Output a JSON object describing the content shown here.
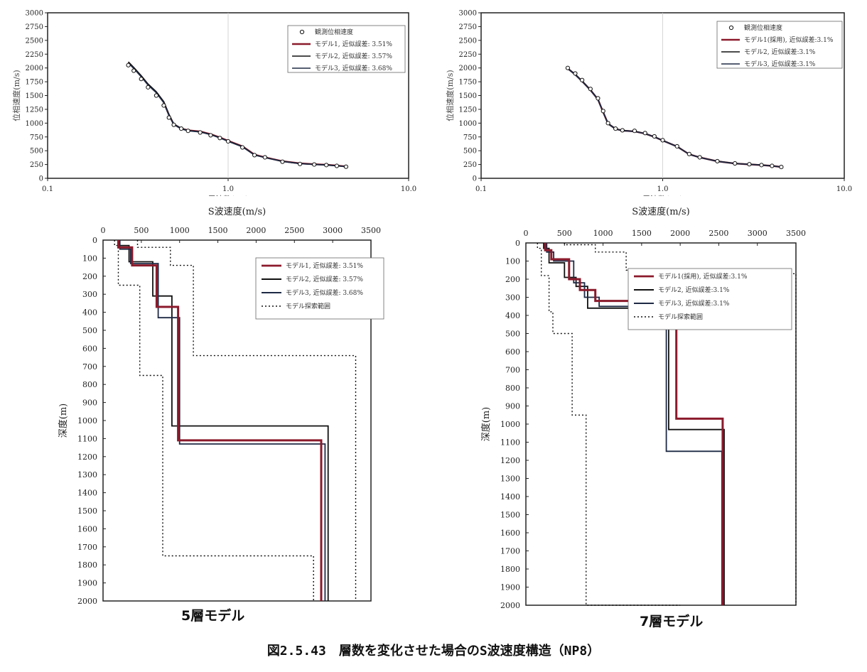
{
  "colors": {
    "model1": "#8b1a2b",
    "model2": "#111111",
    "model3": "#1e2a44",
    "range": "#111111",
    "observed": "#111111"
  },
  "charts": {
    "dispersion_left": {
      "ylabel": "位相速度(m/s)",
      "xlabel": "周波数(Hz)",
      "legend": [
        "観測位相速度",
        "モデル1, 近似誤差: 3.51%",
        "モデル2, 近似誤差: 3.57%",
        "モデル3, 近似誤差: 3.68%"
      ]
    },
    "dispersion_right": {
      "ylabel": "位相速度(m/s)",
      "xlabel": "周波数(Hz)",
      "legend": [
        "観測位相速度",
        "モデル1(採用), 近似誤差:3.1%",
        "モデル2, 近似誤差:3.1%",
        "モデル3, 近似誤差:3.1%"
      ]
    },
    "profile_left": {
      "xlabel": "S波速度(m/s)",
      "ylabel": "深度(m)",
      "legend": [
        "モデル1, 近似誤差: 3.51%",
        "モデル2, 近似誤差: 3.57%",
        "モデル3, 近似誤差: 3.68%",
        "モデル探索範囲"
      ],
      "caption": "5層モデル"
    },
    "profile_right": {
      "xlabel": "S波速度(m/s)",
      "ylabel": "深度(m)",
      "legend": [
        "モデル1(採用), 近似誤差:3.1%",
        "モデル2, 近似誤差:3.1%",
        "モデル3, 近似誤差:3.1%",
        "モデル探索範囲"
      ],
      "caption": "7層モデル"
    }
  },
  "figure_caption": "図2.5.43　層数を変化させた場合のS波速度構造（NP8）",
  "chart_data": [
    {
      "type": "line",
      "xscale": "log",
      "xlim": [
        0.1,
        10.0
      ],
      "xticks": [
        "0.1",
        "1.0",
        "10.0"
      ],
      "ylim": [
        0,
        3000
      ],
      "yticks": [
        0,
        250,
        500,
        750,
        1000,
        1250,
        1500,
        1750,
        2000,
        2250,
        2500,
        2750,
        3000
      ],
      "xlabel": "周波数(Hz)",
      "ylabel": "位相速度(m/s)",
      "legend_position": "top-right",
      "observed": {
        "name": "観測位相速度",
        "x": [
          0.28,
          0.3,
          0.33,
          0.36,
          0.4,
          0.44,
          0.47,
          0.5,
          0.55,
          0.6,
          0.7,
          0.8,
          0.9,
          1.0,
          1.2,
          1.4,
          1.6,
          2.0,
          2.5,
          3.0,
          3.5,
          4.0,
          4.5
        ],
        "y": [
          2050,
          1950,
          1800,
          1650,
          1500,
          1320,
          1100,
          970,
          900,
          860,
          830,
          780,
          730,
          670,
          560,
          420,
          380,
          300,
          260,
          250,
          240,
          225,
          210
        ]
      },
      "series": [
        {
          "name": "モデル1, 近似誤差: 3.51%",
          "x": [
            0.28,
            0.3,
            0.33,
            0.36,
            0.4,
            0.44,
            0.47,
            0.5,
            0.55,
            0.6,
            0.7,
            0.8,
            0.9,
            1.0,
            1.2,
            1.4,
            1.6,
            2.0,
            2.5,
            3.0,
            3.5,
            4.0,
            4.5
          ],
          "y": [
            2100,
            2000,
            1850,
            1700,
            1560,
            1380,
            1150,
            980,
            900,
            870,
            850,
            800,
            740,
            680,
            580,
            430,
            380,
            310,
            270,
            255,
            245,
            230,
            215
          ]
        },
        {
          "name": "モデル2, 近似誤差: 3.57%",
          "x": [
            0.28,
            0.3,
            0.33,
            0.36,
            0.4,
            0.44,
            0.47,
            0.5,
            0.55,
            0.6,
            0.7,
            0.8,
            0.9,
            1.0,
            1.2,
            1.4,
            1.6,
            2.0,
            2.5,
            3.0,
            3.5,
            4.0,
            4.5
          ],
          "y": [
            2110,
            2010,
            1860,
            1710,
            1570,
            1390,
            1160,
            985,
            905,
            865,
            845,
            795,
            735,
            675,
            575,
            425,
            378,
            308,
            268,
            253,
            243,
            228,
            213
          ]
        },
        {
          "name": "モデル3, 近似誤差: 3.68%",
          "x": [
            0.28,
            0.3,
            0.33,
            0.36,
            0.4,
            0.44,
            0.47,
            0.5,
            0.55,
            0.6,
            0.7,
            0.8,
            0.9,
            1.0,
            1.2,
            1.4,
            1.6,
            2.0,
            2.5,
            3.0,
            3.5,
            4.0,
            4.5
          ],
          "y": [
            2090,
            1990,
            1840,
            1690,
            1550,
            1370,
            1140,
            975,
            895,
            860,
            840,
            790,
            730,
            670,
            570,
            420,
            375,
            305,
            265,
            250,
            240,
            225,
            210
          ]
        }
      ]
    },
    {
      "type": "line",
      "xscale": "log",
      "xlim": [
        0.1,
        10.0
      ],
      "xticks": [
        "0.1",
        "1.0",
        "10.0"
      ],
      "ylim": [
        0,
        3000
      ],
      "yticks": [
        0,
        250,
        500,
        750,
        1000,
        1250,
        1500,
        1750,
        2000,
        2250,
        2500,
        2750,
        3000
      ],
      "xlabel": "周波数(Hz)",
      "ylabel": "位相速度(m/s)",
      "legend_position": "top-right",
      "observed": {
        "name": "観測位相速度",
        "x": [
          0.3,
          0.33,
          0.36,
          0.4,
          0.44,
          0.47,
          0.5,
          0.55,
          0.6,
          0.7,
          0.8,
          0.9,
          1.0,
          1.2,
          1.4,
          1.6,
          2.0,
          2.5,
          3.0,
          3.5,
          4.0,
          4.5
        ],
        "y": [
          2000,
          1900,
          1780,
          1620,
          1450,
          1220,
          1000,
          900,
          870,
          860,
          820,
          760,
          690,
          580,
          440,
          380,
          310,
          270,
          255,
          240,
          225,
          205
        ]
      },
      "series": [
        {
          "name": "モデル1(採用), 近似誤差:3.1%",
          "x": [
            0.3,
            0.33,
            0.36,
            0.4,
            0.44,
            0.47,
            0.5,
            0.55,
            0.6,
            0.7,
            0.8,
            0.9,
            1.0,
            1.2,
            1.4,
            1.6,
            2.0,
            2.5,
            3.0,
            3.5,
            4.0,
            4.5
          ],
          "y": [
            1990,
            1880,
            1760,
            1600,
            1430,
            1200,
            990,
            895,
            865,
            850,
            810,
            750,
            685,
            575,
            435,
            378,
            308,
            268,
            253,
            240,
            225,
            205
          ]
        },
        {
          "name": "モデル2, 近似誤差:3.1%",
          "x": [
            0.3,
            0.33,
            0.36,
            0.4,
            0.44,
            0.47,
            0.5,
            0.55,
            0.6,
            0.7,
            0.8,
            0.9,
            1.0,
            1.2,
            1.4,
            1.6,
            2.0,
            2.5,
            3.0,
            3.5,
            4.0,
            4.5
          ],
          "y": [
            1995,
            1885,
            1765,
            1605,
            1435,
            1205,
            995,
            898,
            868,
            853,
            813,
            753,
            688,
            578,
            438,
            380,
            310,
            270,
            255,
            242,
            227,
            207
          ]
        },
        {
          "name": "モデル3, 近似誤差:3.1%",
          "x": [
            0.3,
            0.33,
            0.36,
            0.4,
            0.44,
            0.47,
            0.5,
            0.55,
            0.6,
            0.7,
            0.8,
            0.9,
            1.0,
            1.2,
            1.4,
            1.6,
            2.0,
            2.5,
            3.0,
            3.5,
            4.0,
            4.5
          ],
          "y": [
            1985,
            1875,
            1755,
            1595,
            1425,
            1195,
            985,
            892,
            862,
            848,
            808,
            748,
            683,
            573,
            433,
            376,
            306,
            266,
            251,
            238,
            223,
            203
          ]
        }
      ]
    },
    {
      "type": "line",
      "xlim": [
        0,
        3500
      ],
      "xticks": [
        0,
        500,
        1000,
        1500,
        2000,
        2500,
        3000,
        3500
      ],
      "ylim": [
        0,
        2000
      ],
      "yticks": [
        0,
        100,
        200,
        300,
        400,
        500,
        600,
        700,
        800,
        900,
        1000,
        1100,
        1200,
        1300,
        1400,
        1500,
        1600,
        1700,
        1800,
        1900,
        2000
      ],
      "xlabel": "S波速度(m/s)",
      "ylabel": "深度(m)",
      "legend_position": "top-right",
      "series": [
        {
          "name": "モデル1, 近似誤差: 3.51%",
          "vs": [
            200,
            380,
            700,
            980,
            2850
          ],
          "depth_bottom": [
            40,
            140,
            370,
            1110,
            2000
          ]
        },
        {
          "name": "モデル2, 近似誤差: 3.57%",
          "vs": [
            200,
            340,
            650,
            900,
            2940
          ],
          "depth_bottom": [
            30,
            120,
            310,
            1030,
            2000
          ]
        },
        {
          "name": "モデル3, 近似誤差: 3.68%",
          "vs": [
            220,
            360,
            720,
            1000,
            2900
          ],
          "depth_bottom": [
            50,
            130,
            430,
            1130,
            2000
          ]
        }
      ],
      "search_range": {
        "name": "モデル探索範囲",
        "min": {
          "vs": [
            150,
            200,
            480,
            780,
            2750
          ],
          "depth_bottom": [
            30,
            250,
            750,
            1750,
            2000
          ]
        },
        "max": {
          "vs": [
            450,
            880,
            1180,
            3300,
            3300
          ],
          "depth_bottom": [
            40,
            140,
            640,
            2000,
            2000
          ]
        }
      }
    },
    {
      "type": "line",
      "xlim": [
        0,
        3500
      ],
      "xticks": [
        0,
        500,
        1000,
        1500,
        2000,
        2500,
        3000,
        3500
      ],
      "ylim": [
        0,
        2000
      ],
      "yticks": [
        0,
        100,
        200,
        300,
        400,
        500,
        600,
        700,
        800,
        900,
        1000,
        1100,
        1200,
        1300,
        1400,
        1500,
        1600,
        1700,
        1800,
        1900,
        2000
      ],
      "xlabel": "S波速度(m/s)",
      "ylabel": "深度(m)",
      "legend_position": "top-right",
      "series": [
        {
          "name": "モデル1(採用), 近似誤差:3.1%",
          "vs": [
            250,
            330,
            560,
            700,
            900,
            1950,
            2550
          ],
          "depth_bottom": [
            40,
            90,
            200,
            260,
            320,
            970,
            2000
          ]
        },
        {
          "name": "モデル2, 近似誤差:3.1%",
          "vs": [
            230,
            300,
            500,
            650,
            800,
            1850,
            2570
          ],
          "depth_bottom": [
            30,
            110,
            190,
            240,
            360,
            1030,
            2000
          ]
        },
        {
          "name": "モデル3, 近似誤差:3.1%",
          "vs": [
            270,
            360,
            620,
            760,
            950,
            1820,
            2540
          ],
          "depth_bottom": [
            50,
            100,
            220,
            300,
            350,
            1150,
            2000
          ]
        }
      ],
      "search_range": {
        "name": "モデル探索範囲",
        "min": {
          "vs": [
            150,
            200,
            300,
            350,
            600,
            780,
            2000
          ],
          "depth_bottom": [
            30,
            180,
            380,
            500,
            950,
            2000,
            2000
          ]
        },
        "max": {
          "vs": [
            500,
            900,
            1300,
            1400,
            3500,
            3500,
            3500
          ],
          "depth_bottom": [
            10,
            50,
            150,
            170,
            170,
            2000,
            2000
          ]
        }
      }
    }
  ]
}
